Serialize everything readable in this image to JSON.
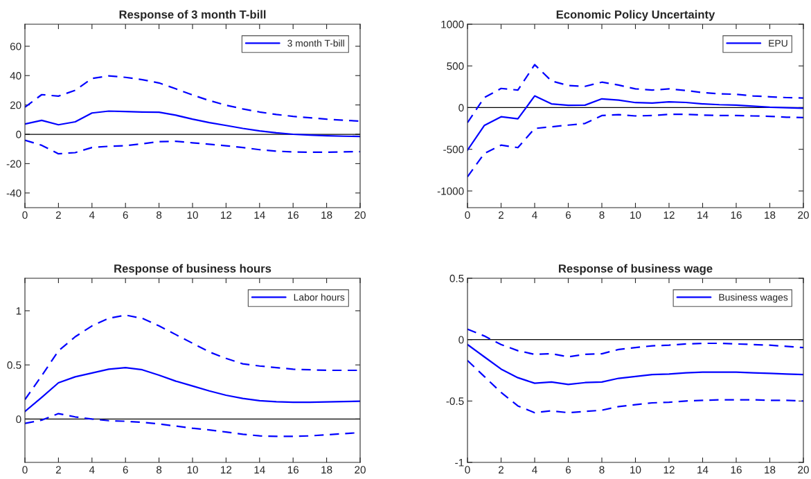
{
  "chart_data": [
    {
      "type": "line",
      "title": "Response of 3 month T-bill",
      "x": [
        0,
        1,
        2,
        3,
        4,
        5,
        6,
        7,
        8,
        9,
        10,
        11,
        12,
        13,
        14,
        15,
        16,
        17,
        18,
        19,
        20
      ],
      "xlim": [
        0,
        20
      ],
      "xticks": [
        0,
        2,
        4,
        6,
        8,
        10,
        12,
        14,
        16,
        18,
        20
      ],
      "ylim": [
        -50,
        75
      ],
      "yticks": [
        -40,
        -20,
        0,
        20,
        40,
        60
      ],
      "legend": "top right",
      "grid": false,
      "marker": "none",
      "series": [
        {
          "name": "3 month T-bill",
          "color": "#0000ff",
          "line_style": "solid",
          "values": [
            7,
            9.5,
            6.5,
            8.5,
            14.5,
            15.8,
            15.5,
            15.2,
            15,
            13,
            10.3,
            8,
            6,
            4,
            2.3,
            1,
            0,
            -0.5,
            -1,
            -1.3,
            -1.5
          ]
        },
        {
          "color": "#0000ff",
          "line_style": "dashed",
          "values": [
            18.5,
            27,
            26,
            30,
            38,
            39.8,
            38.8,
            37.2,
            35,
            31,
            26.8,
            23,
            19.8,
            17.3,
            15.2,
            13.5,
            12.2,
            11.3,
            10.3,
            9.6,
            9
          ]
        },
        {
          "color": "#0000ff",
          "line_style": "dashed",
          "values": [
            -4,
            -7.5,
            -13.3,
            -12.5,
            -9,
            -8.2,
            -7.8,
            -6.5,
            -5,
            -4.8,
            -5.8,
            -6.8,
            -7.8,
            -9,
            -10.5,
            -11.5,
            -12,
            -12.2,
            -12.2,
            -12,
            -11.8
          ]
        }
      ],
      "ref_lines": [
        {
          "axis": "y",
          "value": 0,
          "color": "#000000"
        }
      ]
    },
    {
      "type": "line",
      "title": "Economic Policy Uncertainty",
      "x": [
        0,
        1,
        2,
        3,
        4,
        5,
        6,
        7,
        8,
        9,
        10,
        11,
        12,
        13,
        14,
        15,
        16,
        17,
        18,
        19,
        20
      ],
      "xlim": [
        0,
        20
      ],
      "xticks": [
        0,
        2,
        4,
        6,
        8,
        10,
        12,
        14,
        16,
        18,
        20
      ],
      "ylim": [
        -1200,
        1000
      ],
      "yticks": [
        -1000,
        -500,
        0,
        500,
        1000
      ],
      "legend": "top right",
      "grid": false,
      "marker": "none",
      "series": [
        {
          "name": "EPU",
          "color": "#0000ff",
          "line_style": "solid",
          "values": [
            -510,
            -215,
            -110,
            -135,
            140,
            45,
            28,
            30,
            105,
            90,
            60,
            55,
            70,
            62,
            45,
            35,
            30,
            18,
            5,
            -2,
            -8
          ]
        },
        {
          "color": "#0000ff",
          "line_style": "dashed",
          "values": [
            -180,
            120,
            230,
            210,
            515,
            320,
            265,
            255,
            305,
            270,
            225,
            210,
            225,
            205,
            180,
            165,
            160,
            140,
            130,
            120,
            115
          ]
        },
        {
          "color": "#0000ff",
          "line_style": "dashed",
          "values": [
            -830,
            -550,
            -450,
            -480,
            -250,
            -230,
            -210,
            -190,
            -95,
            -85,
            -100,
            -95,
            -80,
            -80,
            -90,
            -95,
            -95,
            -100,
            -105,
            -115,
            -120
          ]
        }
      ],
      "ref_lines": [
        {
          "axis": "y",
          "value": 0,
          "color": "#000000"
        }
      ]
    },
    {
      "type": "line",
      "title": "Response of business hours",
      "x": [
        0,
        1,
        2,
        3,
        4,
        5,
        6,
        7,
        8,
        9,
        10,
        11,
        12,
        13,
        14,
        15,
        16,
        17,
        18,
        19,
        20
      ],
      "xlim": [
        0,
        20
      ],
      "xticks": [
        0,
        2,
        4,
        6,
        8,
        10,
        12,
        14,
        16,
        18,
        20
      ],
      "ylim": [
        -0.4,
        1.3
      ],
      "yticks": [
        0,
        0.5,
        1
      ],
      "legend": "top right",
      "grid": false,
      "marker": "none",
      "series": [
        {
          "name": "Labor hours",
          "color": "#0000ff",
          "line_style": "solid",
          "values": [
            0.07,
            0.2,
            0.335,
            0.39,
            0.425,
            0.46,
            0.475,
            0.455,
            0.405,
            0.35,
            0.305,
            0.26,
            0.22,
            0.19,
            0.17,
            0.16,
            0.155,
            0.155,
            0.158,
            0.162,
            0.165
          ]
        },
        {
          "color": "#0000ff",
          "line_style": "dashed",
          "values": [
            0.18,
            0.4,
            0.63,
            0.76,
            0.86,
            0.93,
            0.96,
            0.93,
            0.86,
            0.78,
            0.7,
            0.62,
            0.56,
            0.51,
            0.49,
            0.475,
            0.46,
            0.455,
            0.45,
            0.45,
            0.45
          ]
        },
        {
          "color": "#0000ff",
          "line_style": "dashed",
          "values": [
            -0.04,
            -0.01,
            0.05,
            0.02,
            0.0,
            -0.015,
            -0.02,
            -0.03,
            -0.045,
            -0.065,
            -0.085,
            -0.1,
            -0.12,
            -0.14,
            -0.155,
            -0.16,
            -0.16,
            -0.155,
            -0.145,
            -0.135,
            -0.125
          ]
        }
      ],
      "ref_lines": [
        {
          "axis": "y",
          "value": 0,
          "color": "#000000"
        }
      ]
    },
    {
      "type": "line",
      "title": "Response of business wage",
      "x": [
        0,
        1,
        2,
        3,
        4,
        5,
        6,
        7,
        8,
        9,
        10,
        11,
        12,
        13,
        14,
        15,
        16,
        17,
        18,
        19,
        20
      ],
      "xlim": [
        0,
        20
      ],
      "xticks": [
        0,
        2,
        4,
        6,
        8,
        10,
        12,
        14,
        16,
        18,
        20
      ],
      "ylim": [
        -1,
        0.5
      ],
      "yticks": [
        -1,
        -0.5,
        0,
        0.5
      ],
      "legend": "top right",
      "grid": false,
      "marker": "none",
      "series": [
        {
          "name": "Business wages",
          "color": "#0000ff",
          "line_style": "solid",
          "values": [
            -0.04,
            -0.14,
            -0.24,
            -0.31,
            -0.355,
            -0.345,
            -0.365,
            -0.35,
            -0.345,
            -0.315,
            -0.3,
            -0.285,
            -0.28,
            -0.27,
            -0.265,
            -0.265,
            -0.265,
            -0.27,
            -0.275,
            -0.28,
            -0.285
          ]
        },
        {
          "color": "#0000ff",
          "line_style": "dashed",
          "values": [
            0.085,
            0.03,
            -0.04,
            -0.09,
            -0.12,
            -0.115,
            -0.14,
            -0.12,
            -0.115,
            -0.08,
            -0.065,
            -0.05,
            -0.045,
            -0.035,
            -0.03,
            -0.03,
            -0.035,
            -0.04,
            -0.045,
            -0.055,
            -0.065
          ]
        },
        {
          "color": "#0000ff",
          "line_style": "dashed",
          "values": [
            -0.17,
            -0.3,
            -0.43,
            -0.54,
            -0.595,
            -0.58,
            -0.595,
            -0.585,
            -0.575,
            -0.545,
            -0.53,
            -0.515,
            -0.51,
            -0.5,
            -0.495,
            -0.49,
            -0.49,
            -0.49,
            -0.495,
            -0.495,
            -0.5
          ]
        }
      ],
      "ref_lines": [
        {
          "axis": "y",
          "value": 0,
          "color": "#000000"
        }
      ]
    }
  ]
}
